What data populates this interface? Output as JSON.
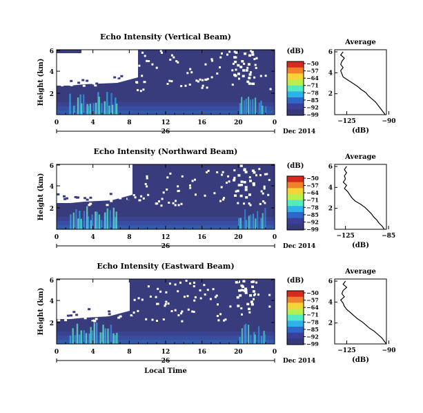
{
  "chart_data": [
    {
      "type": "heatmap",
      "title": "Echo Intensity (Vertical Beam)",
      "ylabel": "Height (km)",
      "x_ticks": [
        "0",
        "4",
        "8",
        "12",
        "16",
        "20",
        "0"
      ],
      "y_ticks": [
        "6",
        "4",
        "2"
      ],
      "date_tick": "26",
      "date_label": "Dec 2014",
      "colorbar": {
        "unit": "(dB)",
        "tick_labels": [
          "-50",
          "-57",
          "-64",
          "-71",
          "-78",
          "-85",
          "-92",
          "-99"
        ],
        "colors": [
          "#d62a1f",
          "#f0802a",
          "#f5d437",
          "#b6f04d",
          "#52eac2",
          "#2fb2e9",
          "#2f67c9",
          "#3b3f98",
          "#373a79"
        ]
      },
      "white_region": "heights above ~3.2 km from 0 to ~7.5 h, scattered white gaps after",
      "strong_echo_times": [
        "~1-6 h",
        "~19-21 h"
      ],
      "profile": {
        "title": "Average",
        "xlabel": "(dB)",
        "x_ticks": [
          "-125",
          "-90"
        ],
        "y_ticks": [
          "6",
          "4",
          "2"
        ],
        "heights_km": [
          0,
          0.3,
          0.6,
          0.9,
          1.2,
          1.5,
          1.8,
          2.1,
          2.4,
          2.7,
          3.0,
          3.3,
          3.6,
          3.9,
          4.2,
          4.5,
          4.8,
          5.1,
          5.4,
          5.7,
          6.0
        ],
        "values_db": [
          -93,
          -95,
          -97,
          -99,
          -101,
          -104,
          -107,
          -109,
          -113,
          -116,
          -120,
          -124,
          -128,
          -129,
          -130,
          -128,
          -130,
          -129,
          -127,
          -130,
          -128
        ]
      }
    },
    {
      "type": "heatmap",
      "title": "Echo Intensity (Northward Beam)",
      "ylabel": "Height (km)",
      "x_ticks": [
        "0",
        "4",
        "8",
        "12",
        "16",
        "20",
        "0"
      ],
      "y_ticks": [
        "6",
        "4",
        "2"
      ],
      "date_tick": "26",
      "date_label": "Dec 2014",
      "colorbar": {
        "unit": "(dB)",
        "tick_labels": [
          "-50",
          "-57",
          "-64",
          "-71",
          "-78",
          "-85",
          "-92",
          "-99"
        ],
        "colors": [
          "#d62a1f",
          "#f0802a",
          "#f5d437",
          "#b6f04d",
          "#52eac2",
          "#2fb2e9",
          "#2f67c9",
          "#3b3f98",
          "#373a79"
        ]
      },
      "profile": {
        "title": "Average",
        "xlabel": "(dB)",
        "x_ticks": [
          "-125",
          "-85"
        ],
        "y_ticks": [
          "6",
          "4",
          "2"
        ],
        "heights_km": [
          0,
          0.3,
          0.6,
          0.9,
          1.2,
          1.5,
          1.8,
          2.1,
          2.4,
          2.7,
          3.0,
          3.3,
          3.6,
          3.9,
          4.2,
          4.5,
          4.8,
          5.1,
          5.4,
          5.7,
          6.0
        ],
        "values_db": [
          -89,
          -91,
          -94,
          -96,
          -99,
          -101,
          -104,
          -107,
          -111,
          -116,
          -119,
          -121,
          -123,
          -126,
          -124,
          -127,
          -125,
          -126,
          -124,
          -126,
          -124
        ]
      }
    },
    {
      "type": "heatmap",
      "title": "Echo Intensity (Eastward Beam)",
      "ylabel": "Height (km)",
      "xlabel": "Local Time",
      "x_ticks": [
        "0",
        "4",
        "8",
        "12",
        "16",
        "20",
        "0"
      ],
      "y_ticks": [
        "6",
        "4",
        "2"
      ],
      "date_tick": "26",
      "date_label": "Dec 2014",
      "colorbar": {
        "unit": "(dB)",
        "tick_labels": [
          "-50",
          "-57",
          "-64",
          "-71",
          "-78",
          "-85",
          "-92",
          "-99"
        ],
        "colors": [
          "#d62a1f",
          "#f0802a",
          "#f5d437",
          "#b6f04d",
          "#52eac2",
          "#2fb2e9",
          "#2f67c9",
          "#3b3f98",
          "#373a79"
        ]
      },
      "profile": {
        "title": "Average",
        "xlabel": "(dB)",
        "x_ticks": [
          "-125",
          "-90"
        ],
        "y_ticks": [
          "6",
          "4",
          "2"
        ],
        "heights_km": [
          0,
          0.3,
          0.6,
          0.9,
          1.2,
          1.5,
          1.8,
          2.1,
          2.4,
          2.7,
          3.0,
          3.3,
          3.6,
          3.9,
          4.2,
          4.5,
          4.8,
          5.1,
          5.4,
          5.7,
          6.0
        ],
        "values_db": [
          -92,
          -94,
          -96,
          -99,
          -102,
          -106,
          -109,
          -112,
          -116,
          -119,
          -122,
          -125,
          -127,
          -128,
          -130,
          -127,
          -129,
          -128,
          -125,
          -128,
          -126
        ]
      }
    }
  ]
}
